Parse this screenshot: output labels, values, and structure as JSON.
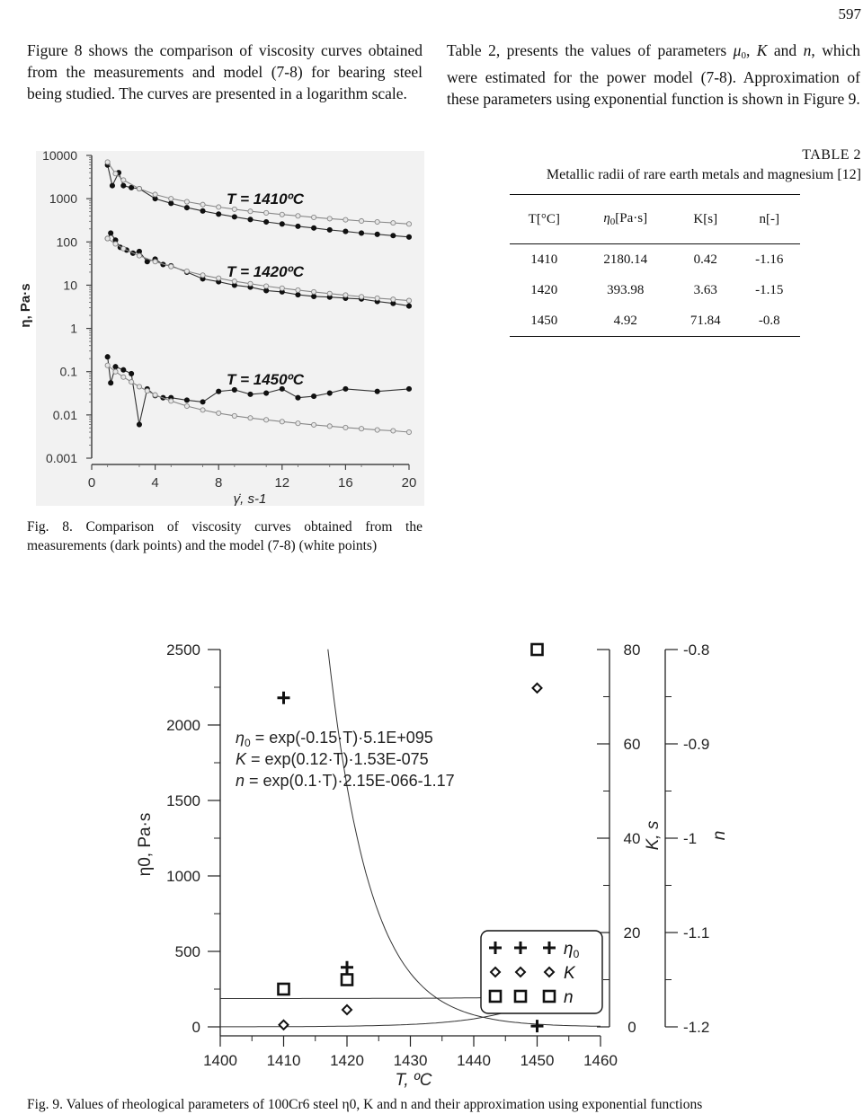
{
  "page_number": "597",
  "left_paragraph": "Figure 8 shows the comparison of viscosity curves obtained from the measurements and model (7-8) for bearing steel being studied. The curves are presented in a logarithm scale.",
  "right_paragraph": {
    "p1": "Table 2, presents the values of parameters ",
    "mu": "μ",
    "mu_sub": "0",
    "p2": ", ",
    "K": "K",
    "p3": " and ",
    "n": "n",
    "p4": ", which were estimated for the power model (7-8). Approximation of these parameters using exponential function is shown in Figure 9."
  },
  "table2": {
    "label": "TABLE 2",
    "caption": "Metallic radii of rare earth metals and magnesium [12]",
    "headers": [
      "T[°C]",
      "η",
      "0",
      "[Pa·s]",
      "K[s]",
      "n[-]"
    ],
    "rows": [
      [
        "1410",
        "2180.14",
        "0.42",
        "-1.16"
      ],
      [
        "1420",
        "393.98",
        "3.63",
        "-1.15"
      ],
      [
        "1450",
        "4.92",
        "71.84",
        "-0.8"
      ]
    ]
  },
  "fig8_caption": "Fig. 8. Comparison of viscosity curves obtained from the measurements (dark points) and the model (7-8) (white points)",
  "fig9_caption": "Fig. 9. Values of rheological parameters of 100Cr6 steel η0, K and n and their approximation using exponential functions",
  "chart_data": [
    {
      "type": "line",
      "y_scale": "log",
      "xlabel": "γ̇, s-1",
      "ylabel": "η, Pa·s",
      "xlim": [
        0,
        20
      ],
      "ylim": [
        0.001,
        10000
      ],
      "x_ticks": [
        "0",
        "4",
        "8",
        "12",
        "16",
        "20"
      ],
      "y_ticks": [
        "0.001",
        "0.01",
        "0.1",
        "1",
        "10",
        "100",
        "1000",
        "10000"
      ],
      "annotations": [
        "T = 1410ºC",
        "T = 1420ºC",
        "T = 1450ºC"
      ],
      "series": [
        {
          "group": "1410",
          "marker": "dark",
          "x": [
            1,
            1.3,
            1.7,
            2,
            2.5,
            3,
            4,
            5,
            6,
            7,
            8,
            9,
            10,
            11,
            12,
            13,
            14,
            15,
            16,
            17,
            18,
            19,
            20
          ],
          "y": [
            6000,
            2000,
            4000,
            2000,
            1800,
            1700,
            1000,
            780,
            620,
            520,
            440,
            380,
            330,
            290,
            260,
            230,
            210,
            190,
            175,
            160,
            150,
            140,
            130
          ]
        },
        {
          "group": "1410",
          "marker": "white",
          "x": [
            1,
            1.5,
            2,
            3,
            4,
            5,
            6,
            7,
            8,
            9,
            10,
            11,
            12,
            13,
            14,
            15,
            16,
            17,
            18,
            19,
            20
          ],
          "y": [
            7000,
            3800,
            2700,
            1700,
            1250,
            1000,
            850,
            730,
            640,
            570,
            510,
            470,
            430,
            400,
            370,
            345,
            325,
            305,
            290,
            275,
            260
          ]
        },
        {
          "group": "1420",
          "marker": "dark",
          "x": [
            1,
            1.2,
            1.5,
            1.8,
            2.2,
            2.6,
            3,
            3.5,
            4,
            4.5,
            5,
            6,
            7,
            8,
            9,
            10,
            11,
            12,
            13,
            14,
            15,
            16,
            17,
            18,
            19,
            20
          ],
          "y": [
            120,
            160,
            110,
            75,
            65,
            55,
            60,
            35,
            40,
            30,
            28,
            20,
            14,
            12,
            10,
            9,
            7.5,
            7,
            6,
            5.5,
            5.3,
            5,
            4.8,
            4.2,
            3.8,
            3.3
          ]
        },
        {
          "group": "1420",
          "marker": "white",
          "x": [
            1,
            1.5,
            2,
            3,
            4,
            5,
            6,
            7,
            8,
            9,
            10,
            11,
            12,
            13,
            14,
            15,
            16,
            17,
            18,
            19,
            20
          ],
          "y": [
            120,
            90,
            70,
            48,
            35,
            27,
            21,
            17,
            14.5,
            12.3,
            10.8,
            9.5,
            8.5,
            7.7,
            7,
            6.4,
            5.9,
            5.4,
            5,
            4.7,
            4.4
          ]
        },
        {
          "group": "1450",
          "marker": "dark",
          "x": [
            1,
            1.2,
            1.5,
            2,
            2.5,
            3,
            3.5,
            4,
            4.5,
            5,
            6,
            7,
            8,
            9,
            10,
            11,
            12,
            13,
            14,
            15,
            16,
            18,
            20
          ],
          "y": [
            0.22,
            0.055,
            0.13,
            0.11,
            0.09,
            0.006,
            0.04,
            0.028,
            0.025,
            0.025,
            0.022,
            0.02,
            0.035,
            0.038,
            0.03,
            0.032,
            0.04,
            0.025,
            0.027,
            0.032,
            0.04,
            0.035,
            0.04
          ]
        },
        {
          "group": "1450",
          "marker": "white",
          "x": [
            1,
            1.5,
            2,
            2.5,
            3,
            3.5,
            4,
            5,
            6,
            7,
            8,
            9,
            10,
            11,
            12,
            13,
            14,
            15,
            16,
            17,
            18,
            19,
            20
          ],
          "y": [
            0.14,
            0.1,
            0.075,
            0.058,
            0.045,
            0.036,
            0.029,
            0.021,
            0.016,
            0.013,
            0.011,
            0.0095,
            0.0085,
            0.0077,
            0.007,
            0.0064,
            0.0059,
            0.0055,
            0.0051,
            0.0048,
            0.0045,
            0.0043,
            0.004
          ]
        }
      ]
    },
    {
      "type": "scatter",
      "xlabel": "T, ºC",
      "ylabel_left": "η0, Pa·s",
      "ylabel_mid": "K, s",
      "ylabel_right": "n",
      "xlim": [
        1400,
        1460
      ],
      "ylim_left": [
        0,
        2500
      ],
      "ylim_mid": [
        0,
        80
      ],
      "ylim_right": [
        -1.2,
        -0.8
      ],
      "x_ticks": [
        "1400",
        "1410",
        "1420",
        "1430",
        "1440",
        "1450",
        "1460"
      ],
      "y_ticks_left": [
        "0",
        "500",
        "1000",
        "1500",
        "2000",
        "2500"
      ],
      "y_ticks_mid": [
        "0",
        "20",
        "40",
        "60",
        "80"
      ],
      "y_ticks_right": [
        "-1.2",
        "-1.1",
        "-1",
        "-0.9",
        "-0.8"
      ],
      "equations": [
        {
          "lhs": "η",
          "sub": "0",
          "rhs": " = exp(-0.15·T)·5.1E+095"
        },
        {
          "lhs": "K",
          "sub": "",
          "rhs": "  = exp(0.12·T)·1.53E-075"
        },
        {
          "lhs": "n",
          "sub": "",
          "rhs": "  = exp(0.1·T)·2.15E-066-1.17"
        }
      ],
      "legend": {
        "placement": "bottom-right",
        "entries": [
          "η0",
          "K",
          "n"
        ]
      },
      "series": [
        {
          "name": "η0",
          "marker": "plus",
          "axis": "left",
          "x": [
            1410,
            1420,
            1450
          ],
          "y": [
            2180.14,
            393.98,
            4.92
          ]
        },
        {
          "name": "K",
          "marker": "diamond",
          "axis": "mid",
          "x": [
            1410,
            1420,
            1450
          ],
          "y": [
            0.42,
            3.63,
            71.84
          ]
        },
        {
          "name": "n",
          "marker": "square",
          "axis": "right",
          "x": [
            1410,
            1420,
            1450
          ],
          "y": [
            -1.16,
            -1.15,
            -0.8
          ]
        }
      ]
    }
  ]
}
